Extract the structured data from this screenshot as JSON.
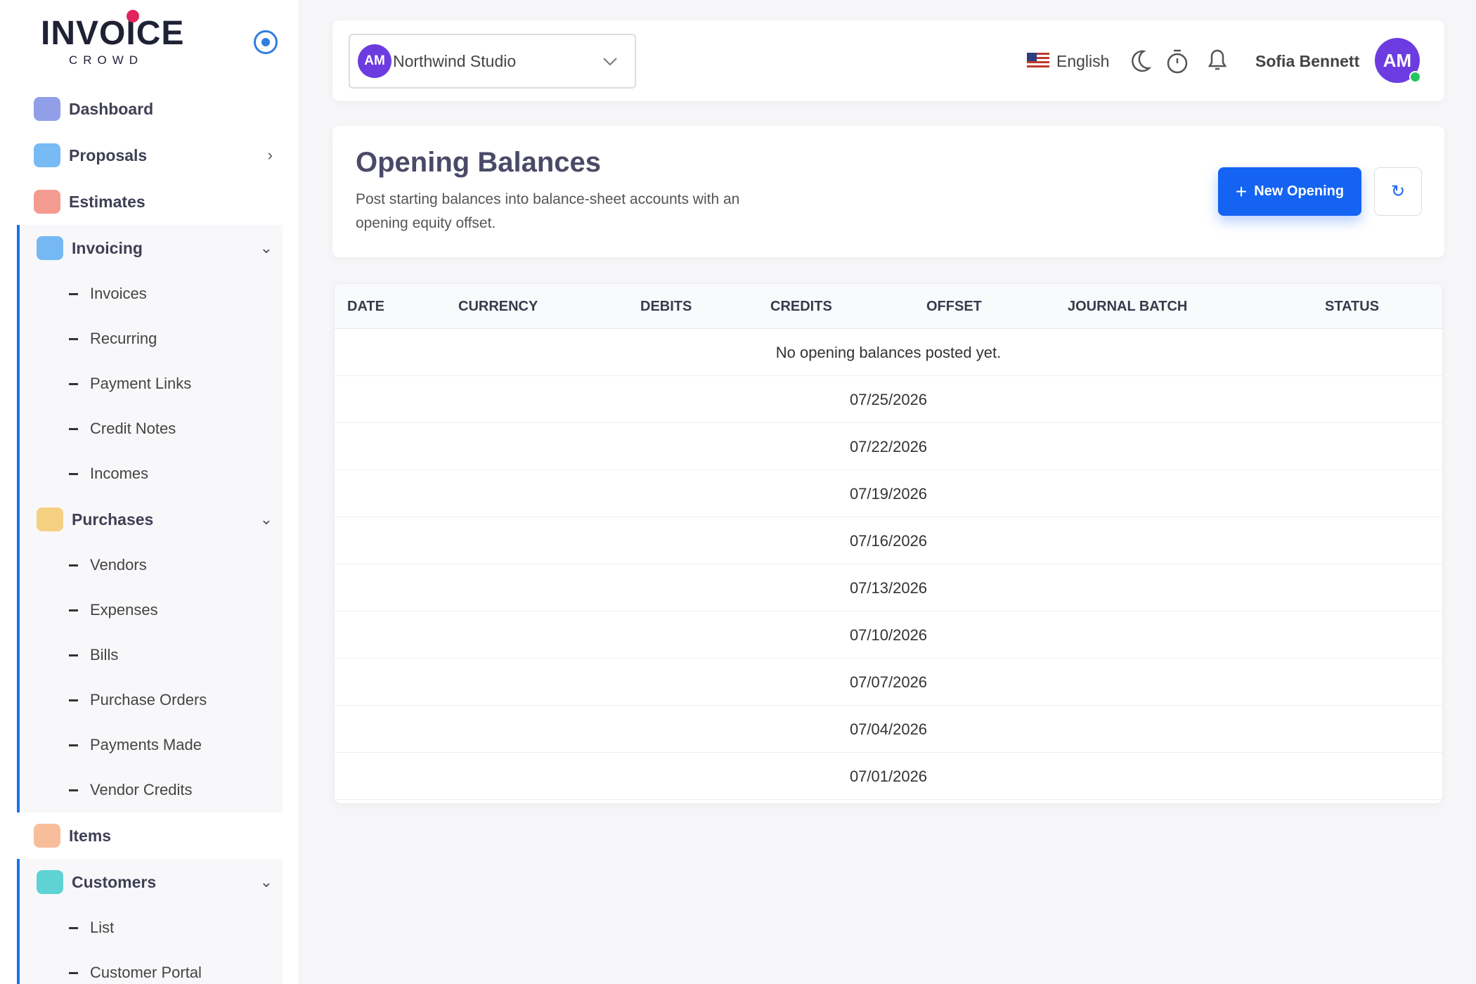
{
  "sidebar": {
    "logo": {
      "title": "INVOICE",
      "subtitle": "CROWD"
    },
    "menu": [
      {
        "label": "Dashboard"
      },
      {
        "label": "Proposals"
      },
      {
        "label": "Estimates"
      },
      {
        "label": "Invoicing",
        "children": [
          "Invoices",
          "Recurring",
          "Payment Links",
          "Credit Notes",
          "Incomes"
        ]
      },
      {
        "label": "Purchases",
        "children": [
          "Vendors",
          "Expenses",
          "Bills",
          "Purchase Orders",
          "Payments Made",
          "Vendor Credits"
        ]
      },
      {
        "label": "Items"
      },
      {
        "label": "Customers",
        "children": [
          "List",
          "Customer Portal"
        ]
      }
    ]
  },
  "header": {
    "company_initials": "AM",
    "company": "Northwind Studio",
    "language": "English",
    "user": "Sofia Bennett",
    "user_initials": "AM"
  },
  "page": {
    "title": "Opening Balances",
    "description": "Post starting balances into balance-sheet accounts with an opening equity offset.",
    "new_button": "New Opening"
  },
  "table": {
    "columns": [
      "DATE",
      "CURRENCY",
      "DEBITS",
      "CREDITS",
      "OFFSET",
      "JOURNAL BATCH",
      "STATUS"
    ],
    "empty_message": "No opening balances posted yet.",
    "rows": [
      "07/25/2026",
      "07/22/2026",
      "07/19/2026",
      "07/16/2026",
      "07/13/2026",
      "07/10/2026",
      "07/07/2026",
      "07/04/2026",
      "07/01/2026"
    ]
  }
}
